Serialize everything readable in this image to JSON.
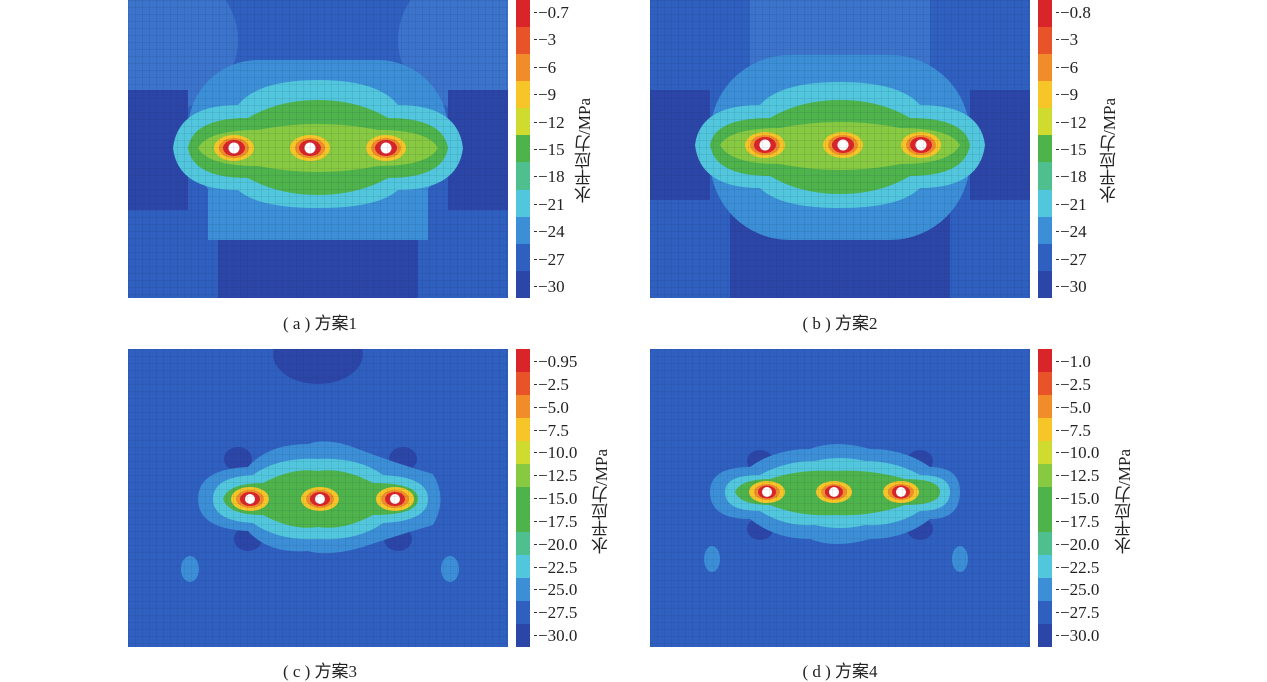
{
  "colors": {
    "bands": [
      "#d9242a",
      "#e9532a",
      "#f08c2a",
      "#f6c628",
      "#cfdc2f",
      "#87c940",
      "#4fb34c",
      "#4fbf90",
      "#52c6dc",
      "#3c8fd6",
      "#2f5fbf",
      "#2c46a8"
    ],
    "hole": "#ffffff",
    "mesh": "#1a2a5a"
  },
  "panels": [
    {
      "caption": "( a ) 方案1",
      "colorbar_label": "水平应力/MPa",
      "ticks": [
        "−0.7",
        "−3",
        "−6",
        "−9",
        "−12",
        "−15",
        "−18",
        "−21",
        "−24",
        "−27",
        "−30"
      ]
    },
    {
      "caption": "( b ) 方案2",
      "colorbar_label": "水平应力/MPa",
      "ticks": [
        "−0.8",
        "−3",
        "−6",
        "−9",
        "−12",
        "−15",
        "−18",
        "−21",
        "−24",
        "−27",
        "−30"
      ]
    },
    {
      "caption": "( c ) 方案3",
      "colorbar_label": "水平应力/MPa",
      "ticks": [
        "−0.95",
        "−2.5",
        "−5.0",
        "−7.5",
        "−10.0",
        "−12.5",
        "−15.0",
        "−17.5",
        "−20.0",
        "−22.5",
        "−25.0",
        "−27.5",
        "−30.0"
      ]
    },
    {
      "caption": "( d ) 方案4",
      "colorbar_label": "水平应力/MPa",
      "ticks": [
        "−1.0",
        "−2.5",
        "−5.0",
        "−7.5",
        "−10.0",
        "−12.5",
        "−15.0",
        "−17.5",
        "−20.0",
        "−22.5",
        "−25.0",
        "−27.5",
        "−30.0"
      ]
    }
  ]
}
